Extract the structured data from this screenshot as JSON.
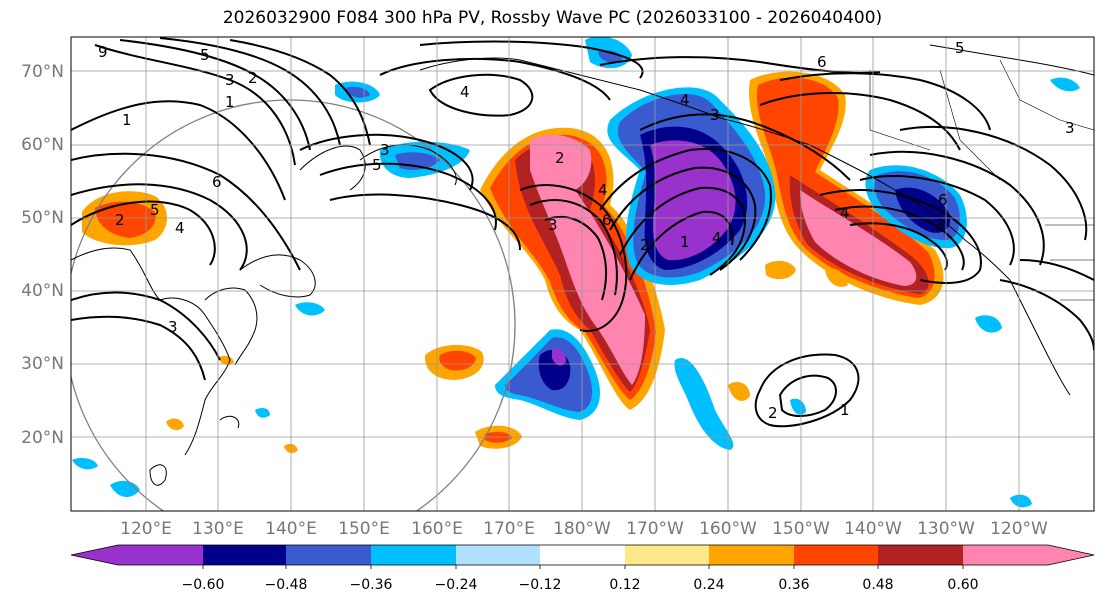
{
  "title": "2026032900 F084 300 hPa PV, Rossby Wave PC (2026033100 - 2026040400)",
  "lat_ticks": [
    "70°N",
    "60°N",
    "50°N",
    "40°N",
    "30°N",
    "20°N"
  ],
  "lon_ticks": [
    "120°E",
    "130°E",
    "140°E",
    "150°E",
    "160°E",
    "170°E",
    "180°W",
    "170°W",
    "160°W",
    "150°W",
    "140°W",
    "130°W",
    "120°W"
  ],
  "colorbar": {
    "colors": [
      "#9932cc",
      "#00008b",
      "#3a5bd0",
      "#00bfff",
      "#b0e2ff",
      "#ffffff",
      "#ffe88a",
      "#ffa500",
      "#ff4500",
      "#b22222",
      "#ff85b0"
    ],
    "labels": [
      "−0.60",
      "−0.48",
      "−0.36",
      "−0.24",
      "−0.12",
      "0.12",
      "0.24",
      "0.36",
      "0.48",
      "0.60"
    ]
  },
  "contour_labels": [
    "9",
    "5",
    "3",
    "2",
    "1",
    "4",
    "6",
    "5",
    "3",
    "2",
    "6",
    "5",
    "4",
    "1",
    "2",
    "5",
    "3",
    "3",
    "2",
    "3",
    "4",
    "6",
    "4",
    "6",
    "3",
    "4",
    "4",
    "3",
    "1",
    "2",
    "1"
  ]
}
